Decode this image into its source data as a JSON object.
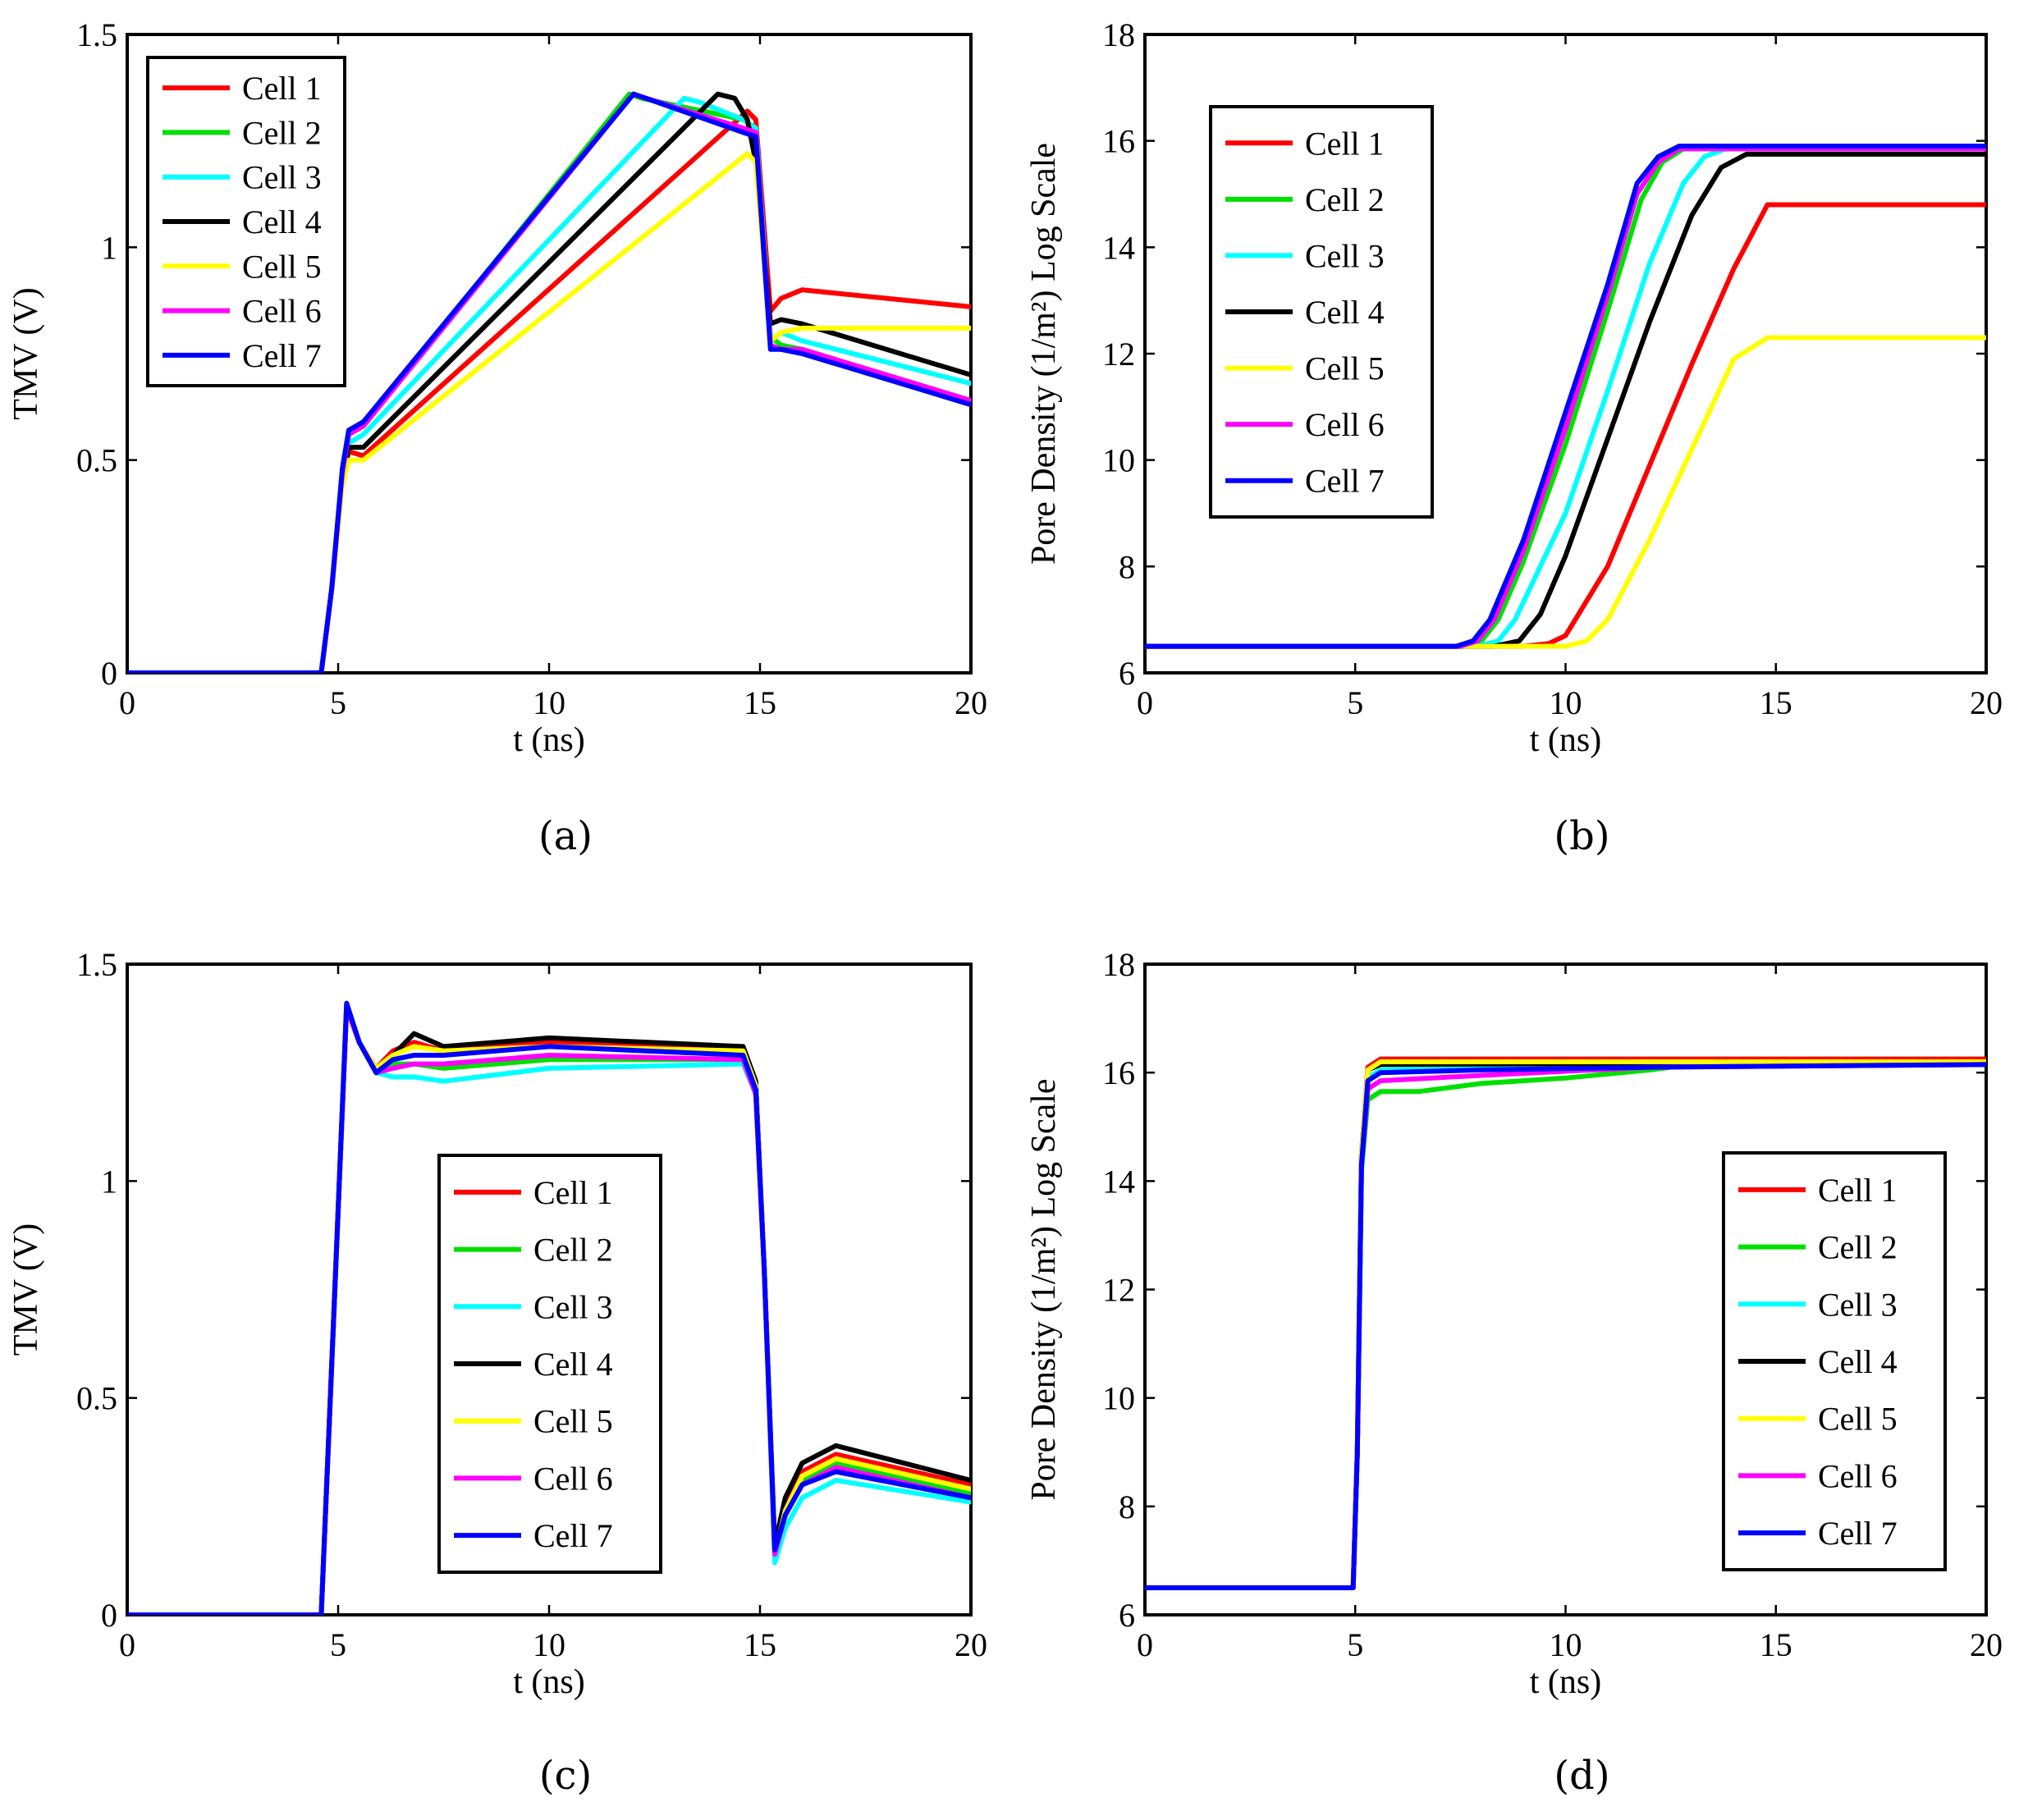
{
  "chart_data": [
    {
      "id": "a",
      "type": "line",
      "caption": "(a)",
      "xlabel": "t (ns)",
      "ylabel": "TMV (V)",
      "xlim": [
        0,
        20
      ],
      "ylim": [
        0,
        1.5
      ],
      "xticks": [
        "0",
        "5",
        "10",
        "15",
        "20"
      ],
      "yticks": [
        "0",
        "0.5",
        "1",
        "1.5"
      ],
      "legend_position": "top-left",
      "series": [
        {
          "name": "Cell 1",
          "color": "#ff0000",
          "x": [
            0,
            4.6,
            4.85,
            5.1,
            5.25,
            5.6,
            14.7,
            14.9,
            15.25,
            15.5,
            16,
            20
          ],
          "y": [
            0,
            0,
            0.2,
            0.45,
            0.52,
            0.51,
            1.32,
            1.3,
            0.85,
            0.88,
            0.9,
            0.86
          ]
        },
        {
          "name": "Cell 2",
          "color": "#00e000",
          "x": [
            0,
            4.6,
            4.85,
            5.1,
            5.25,
            5.6,
            11.9,
            12.2,
            14.6,
            14.9,
            15.25,
            15.5,
            16,
            20
          ],
          "y": [
            0,
            0,
            0.2,
            0.47,
            0.56,
            0.58,
            1.36,
            1.35,
            1.3,
            1.28,
            0.79,
            0.77,
            0.76,
            0.64
          ]
        },
        {
          "name": "Cell 3",
          "color": "#00ffff",
          "x": [
            0,
            4.6,
            4.85,
            5.1,
            5.25,
            5.6,
            13.2,
            13.6,
            14.6,
            14.9,
            15.25,
            15.5,
            16,
            20
          ],
          "y": [
            0,
            0,
            0.2,
            0.46,
            0.54,
            0.56,
            1.35,
            1.34,
            1.3,
            1.28,
            0.78,
            0.8,
            0.78,
            0.68
          ]
        },
        {
          "name": "Cell 4",
          "color": "#000000",
          "x": [
            0,
            4.6,
            4.85,
            5.1,
            5.25,
            5.6,
            14.0,
            14.4,
            14.7,
            14.9,
            15.25,
            15.5,
            16,
            20
          ],
          "y": [
            0,
            0,
            0.2,
            0.45,
            0.53,
            0.53,
            1.36,
            1.35,
            1.3,
            1.2,
            0.82,
            0.83,
            0.82,
            0.7
          ]
        },
        {
          "name": "Cell 5",
          "color": "#ffff00",
          "x": [
            0,
            4.6,
            4.85,
            5.1,
            5.25,
            5.6,
            14.7,
            14.9,
            15.25,
            15.5,
            16,
            20
          ],
          "y": [
            0,
            0,
            0.2,
            0.44,
            0.5,
            0.5,
            1.22,
            1.2,
            0.78,
            0.8,
            0.81,
            0.81
          ]
        },
        {
          "name": "Cell 6",
          "color": "#ff00ff",
          "x": [
            0,
            4.6,
            4.85,
            5.1,
            5.25,
            5.6,
            12.0,
            12.3,
            14.6,
            14.9,
            15.25,
            15.5,
            16,
            20
          ],
          "y": [
            0,
            0,
            0.2,
            0.47,
            0.56,
            0.58,
            1.36,
            1.35,
            1.28,
            1.27,
            0.77,
            0.76,
            0.76,
            0.64
          ]
        },
        {
          "name": "Cell 7",
          "color": "#0000ff",
          "x": [
            0,
            4.6,
            4.85,
            5.1,
            5.25,
            5.6,
            12.0,
            12.3,
            14.6,
            14.9,
            15.25,
            15.5,
            16,
            20
          ],
          "y": [
            0,
            0,
            0.2,
            0.48,
            0.57,
            0.59,
            1.36,
            1.35,
            1.27,
            1.26,
            0.76,
            0.76,
            0.75,
            0.63
          ]
        }
      ]
    },
    {
      "id": "b",
      "type": "line",
      "caption": "(b)",
      "xlabel": "t (ns)",
      "ylabel": "Pore Density (1/m²) Log Scale",
      "xlim": [
        0,
        20
      ],
      "ylim": [
        6,
        18
      ],
      "xticks": [
        "0",
        "5",
        "10",
        "15",
        "20"
      ],
      "yticks": [
        "6",
        "8",
        "10",
        "12",
        "14",
        "16",
        "18"
      ],
      "legend_position": "top-left",
      "series": [
        {
          "name": "Cell 1",
          "color": "#ff0000",
          "x": [
            0,
            9.0,
            9.6,
            10.0,
            11.0,
            12.0,
            13.0,
            14.0,
            14.8,
            20
          ],
          "y": [
            6.5,
            6.5,
            6.55,
            6.7,
            8.0,
            9.9,
            11.8,
            13.6,
            14.8,
            14.8
          ]
        },
        {
          "name": "Cell 2",
          "color": "#00e000",
          "x": [
            0,
            7.6,
            8.0,
            8.4,
            9.0,
            10.0,
            11.0,
            11.8,
            12.3,
            12.8,
            20
          ],
          "y": [
            6.5,
            6.5,
            6.6,
            7.0,
            8.1,
            10.3,
            12.8,
            14.9,
            15.6,
            15.85,
            15.85
          ]
        },
        {
          "name": "Cell 3",
          "color": "#00ffff",
          "x": [
            0,
            7.9,
            8.4,
            8.8,
            10.0,
            11.0,
            12.0,
            12.8,
            13.3,
            13.8,
            20
          ],
          "y": [
            6.5,
            6.5,
            6.6,
            7.0,
            9.0,
            11.3,
            13.7,
            15.2,
            15.7,
            15.85,
            15.85
          ]
        },
        {
          "name": "Cell 4",
          "color": "#000000",
          "x": [
            0,
            8.3,
            8.9,
            9.4,
            10.0,
            11.0,
            12.0,
            13.0,
            13.7,
            14.3,
            20
          ],
          "y": [
            6.5,
            6.5,
            6.6,
            7.1,
            8.2,
            10.4,
            12.6,
            14.6,
            15.5,
            15.75,
            15.75
          ]
        },
        {
          "name": "Cell 5",
          "color": "#ffff00",
          "x": [
            0,
            10.0,
            10.5,
            11.0,
            12.0,
            13.0,
            14.0,
            14.8,
            20
          ],
          "y": [
            6.5,
            6.5,
            6.6,
            7.0,
            8.5,
            10.2,
            11.9,
            12.3,
            12.3
          ]
        },
        {
          "name": "Cell 6",
          "color": "#ff00ff",
          "x": [
            0,
            7.5,
            7.9,
            8.3,
            9.0,
            10.0,
            11.0,
            11.7,
            12.2,
            12.7,
            20
          ],
          "y": [
            6.5,
            6.5,
            6.6,
            7.0,
            8.3,
            10.6,
            13.1,
            15.0,
            15.6,
            15.85,
            15.85
          ]
        },
        {
          "name": "Cell 7",
          "color": "#0000ff",
          "x": [
            0,
            7.4,
            7.8,
            8.2,
            9.0,
            10.0,
            11.0,
            11.7,
            12.2,
            12.7,
            20
          ],
          "y": [
            6.5,
            6.5,
            6.6,
            7.0,
            8.5,
            10.9,
            13.3,
            15.2,
            15.7,
            15.9,
            15.9
          ]
        }
      ]
    },
    {
      "id": "c",
      "type": "line",
      "caption": "(c)",
      "xlabel": "t (ns)",
      "ylabel": "TMV (V)",
      "xlim": [
        0,
        20
      ],
      "ylim": [
        0,
        1.5
      ],
      "xticks": [
        "0",
        "5",
        "10",
        "15",
        "20"
      ],
      "yticks": [
        "0",
        "0.5",
        "1",
        "1.5"
      ],
      "legend_position": "center",
      "series": [
        {
          "name": "Cell 1",
          "color": "#ff0000",
          "x": [
            0,
            4.6,
            4.9,
            5.2,
            5.5,
            5.9,
            6.3,
            6.8,
            7.5,
            10,
            14.6,
            14.9,
            15.1,
            15.35,
            15.6,
            16.0,
            16.8,
            20
          ],
          "y": [
            0,
            0,
            0.7,
            1.4,
            1.32,
            1.26,
            1.3,
            1.32,
            1.3,
            1.32,
            1.3,
            1.22,
            0.8,
            0.14,
            0.25,
            0.33,
            0.37,
            0.3
          ]
        },
        {
          "name": "Cell 2",
          "color": "#00e000",
          "x": [
            0,
            4.6,
            4.9,
            5.2,
            5.5,
            5.9,
            6.3,
            6.8,
            7.5,
            10,
            14.6,
            14.9,
            15.1,
            15.35,
            15.6,
            16.0,
            16.8,
            20
          ],
          "y": [
            0,
            0,
            0.7,
            1.4,
            1.32,
            1.25,
            1.27,
            1.27,
            1.26,
            1.28,
            1.28,
            1.2,
            0.8,
            0.14,
            0.24,
            0.31,
            0.35,
            0.28
          ]
        },
        {
          "name": "Cell 3",
          "color": "#00ffff",
          "x": [
            0,
            4.6,
            4.9,
            5.2,
            5.5,
            5.9,
            6.3,
            6.8,
            7.5,
            10,
            14.6,
            14.9,
            15.1,
            15.35,
            15.6,
            16.0,
            16.8,
            20
          ],
          "y": [
            0,
            0,
            0.7,
            1.4,
            1.32,
            1.25,
            1.24,
            1.24,
            1.23,
            1.26,
            1.27,
            1.2,
            0.8,
            0.12,
            0.2,
            0.27,
            0.31,
            0.26
          ]
        },
        {
          "name": "Cell 4",
          "color": "#000000",
          "x": [
            0,
            4.6,
            4.9,
            5.2,
            5.5,
            5.9,
            6.3,
            6.8,
            7.5,
            10,
            14.6,
            14.9,
            15.1,
            15.35,
            15.6,
            16.0,
            16.8,
            20
          ],
          "y": [
            0,
            0,
            0.7,
            1.4,
            1.32,
            1.25,
            1.29,
            1.34,
            1.31,
            1.33,
            1.31,
            1.23,
            0.8,
            0.16,
            0.27,
            0.35,
            0.39,
            0.31
          ]
        },
        {
          "name": "Cell 5",
          "color": "#ffff00",
          "x": [
            0,
            4.6,
            4.9,
            5.2,
            5.5,
            5.9,
            6.3,
            6.8,
            7.5,
            10,
            14.6,
            14.9,
            15.1,
            15.35,
            15.6,
            16.0,
            16.8,
            20
          ],
          "y": [
            0,
            0,
            0.7,
            1.4,
            1.32,
            1.26,
            1.29,
            1.31,
            1.3,
            1.31,
            1.3,
            1.22,
            0.8,
            0.14,
            0.24,
            0.32,
            0.36,
            0.29
          ]
        },
        {
          "name": "Cell 6",
          "color": "#ff00ff",
          "x": [
            0,
            4.6,
            4.9,
            5.2,
            5.5,
            5.9,
            6.3,
            6.8,
            7.5,
            10,
            14.6,
            14.9,
            15.1,
            15.35,
            15.6,
            16.0,
            16.8,
            20
          ],
          "y": [
            0,
            0,
            0.7,
            1.4,
            1.32,
            1.25,
            1.26,
            1.27,
            1.27,
            1.29,
            1.28,
            1.2,
            0.8,
            0.14,
            0.23,
            0.3,
            0.34,
            0.27
          ]
        },
        {
          "name": "Cell 7",
          "color": "#0000ff",
          "x": [
            0,
            4.6,
            4.9,
            5.2,
            5.5,
            5.9,
            6.3,
            6.8,
            7.5,
            10,
            14.6,
            14.9,
            15.1,
            15.35,
            15.6,
            16.0,
            16.8,
            20
          ],
          "y": [
            0,
            0,
            0.7,
            1.41,
            1.32,
            1.25,
            1.28,
            1.29,
            1.29,
            1.31,
            1.29,
            1.21,
            0.8,
            0.15,
            0.23,
            0.3,
            0.33,
            0.27
          ]
        }
      ]
    },
    {
      "id": "d",
      "type": "line",
      "caption": "(d)",
      "xlabel": "t (ns)",
      "ylabel": "Pore Density (1/m²) Log Scale",
      "xlim": [
        0,
        20
      ],
      "ylim": [
        6,
        18
      ],
      "xticks": [
        "0",
        "5",
        "10",
        "15",
        "20"
      ],
      "yticks": [
        "6",
        "8",
        "10",
        "12",
        "14",
        "16",
        "18"
      ],
      "legend_position": "bottom-right",
      "series": [
        {
          "name": "Cell 1",
          "color": "#ff0000",
          "x": [
            0,
            4.95,
            5.05,
            5.15,
            5.3,
            5.6,
            20
          ],
          "y": [
            6.5,
            6.5,
            9.0,
            14.5,
            16.1,
            16.25,
            16.25
          ]
        },
        {
          "name": "Cell 2",
          "color": "#00e000",
          "x": [
            0,
            4.95,
            5.05,
            5.15,
            5.3,
            5.6,
            6.5,
            8.0,
            10,
            12,
            13,
            20
          ],
          "y": [
            6.5,
            6.5,
            9.0,
            14.2,
            15.5,
            15.65,
            15.65,
            15.8,
            15.9,
            16.05,
            16.15,
            16.2
          ]
        },
        {
          "name": "Cell 3",
          "color": "#00ffff",
          "x": [
            0,
            4.95,
            5.05,
            5.15,
            5.3,
            5.6,
            8,
            12,
            20
          ],
          "y": [
            6.5,
            6.5,
            9.0,
            14.4,
            15.9,
            16.05,
            16.1,
            16.15,
            16.2
          ]
        },
        {
          "name": "Cell 4",
          "color": "#000000",
          "x": [
            0,
            4.95,
            5.05,
            5.15,
            5.3,
            5.6,
            20
          ],
          "y": [
            6.5,
            6.5,
            9.0,
            14.5,
            16.05,
            16.15,
            16.2
          ]
        },
        {
          "name": "Cell 5",
          "color": "#ffff00",
          "x": [
            0,
            4.95,
            5.05,
            5.15,
            5.3,
            5.6,
            20
          ],
          "y": [
            6.5,
            6.5,
            9.0,
            14.5,
            16.05,
            16.2,
            16.2
          ]
        },
        {
          "name": "Cell 6",
          "color": "#ff00ff",
          "x": [
            0,
            4.95,
            5.05,
            5.15,
            5.3,
            5.6,
            8,
            12,
            20
          ],
          "y": [
            6.5,
            6.5,
            9.0,
            14.3,
            15.7,
            15.85,
            15.95,
            16.1,
            16.15
          ]
        },
        {
          "name": "Cell 7",
          "color": "#0000ff",
          "x": [
            0,
            4.95,
            5.05,
            5.15,
            5.3,
            5.6,
            8,
            12,
            20
          ],
          "y": [
            6.5,
            6.5,
            9.0,
            14.3,
            15.85,
            16.0,
            16.05,
            16.1,
            16.15
          ]
        }
      ]
    }
  ]
}
